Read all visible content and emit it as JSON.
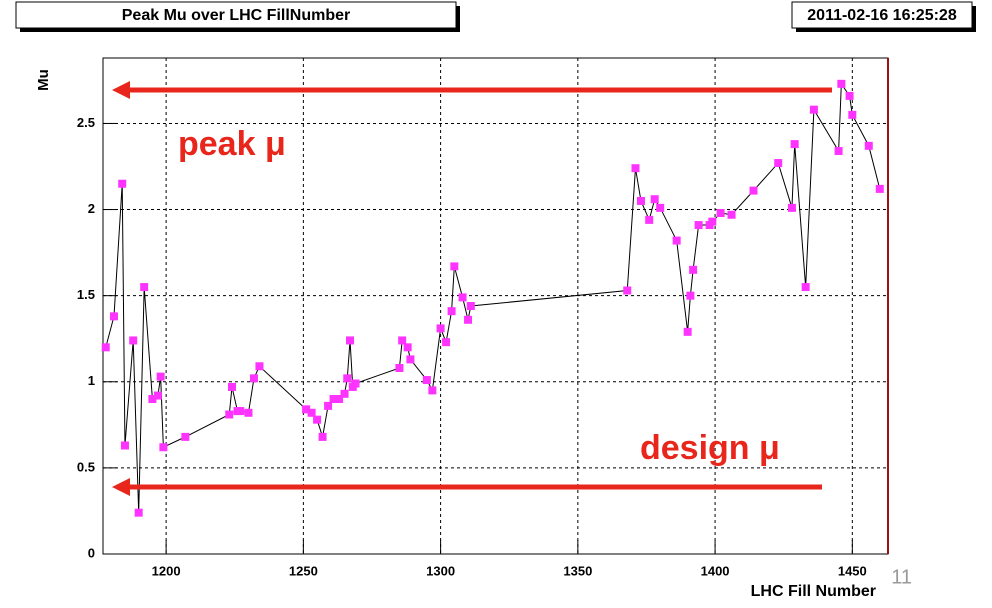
{
  "chart_data": {
    "type": "line",
    "title": "Peak Mu over LHC FillNumber",
    "timestamp": "2011-02-16 16:25:28",
    "x_label": "LHC Fill Number",
    "y_label": "Mu",
    "annotations": [
      "peak μ",
      "design μ"
    ],
    "page_number": "11",
    "line_color": "#000000",
    "marker_color": "#ff33ff",
    "annotation_color": "#e8261b",
    "grid": true,
    "x": [
      1178,
      1181,
      1184,
      1185,
      1188,
      1190,
      1192,
      1195,
      1197,
      1198,
      1199,
      1207,
      1223,
      1224,
      1226,
      1227,
      1230,
      1232,
      1234,
      1251,
      1253,
      1255,
      1257,
      1259,
      1261,
      1263,
      1265,
      1266,
      1267,
      1268,
      1269,
      1285,
      1286,
      1288,
      1289,
      1295,
      1297,
      1300,
      1302,
      1304,
      1305,
      1308,
      1310,
      1311,
      1368,
      1371,
      1373,
      1376,
      1378,
      1380,
      1386,
      1390,
      1391,
      1392,
      1394,
      1398,
      1399,
      1402,
      1406,
      1414,
      1423,
      1428,
      1429,
      1433,
      1436,
      1445,
      1446,
      1449,
      1450,
      1456,
      1460
    ],
    "values": [
      1.2,
      1.38,
      2.15,
      0.63,
      1.24,
      0.24,
      1.55,
      0.9,
      0.92,
      1.03,
      0.62,
      0.68,
      0.81,
      0.97,
      0.83,
      0.83,
      0.82,
      1.02,
      1.09,
      0.84,
      0.82,
      0.78,
      0.68,
      0.86,
      0.9,
      0.9,
      0.93,
      1.02,
      1.24,
      0.97,
      0.99,
      1.08,
      1.24,
      1.2,
      1.13,
      1.01,
      0.95,
      1.31,
      1.23,
      1.41,
      1.67,
      1.49,
      1.36,
      1.44,
      1.53,
      2.24,
      2.05,
      1.94,
      2.06,
      2.01,
      1.82,
      1.29,
      1.5,
      1.65,
      1.91,
      1.91,
      1.93,
      1.98,
      1.97,
      2.11,
      2.27,
      2.01,
      2.38,
      1.55,
      2.58,
      2.34,
      2.73,
      2.66,
      2.55,
      2.37,
      2.12
    ],
    "xlim": [
      1177,
      1463
    ],
    "ylim": [
      0,
      2.88
    ],
    "xticks": [
      1200,
      1250,
      1300,
      1350,
      1400,
      1450
    ],
    "yticks": [
      0,
      0.5,
      1,
      1.5,
      2,
      2.5
    ]
  }
}
